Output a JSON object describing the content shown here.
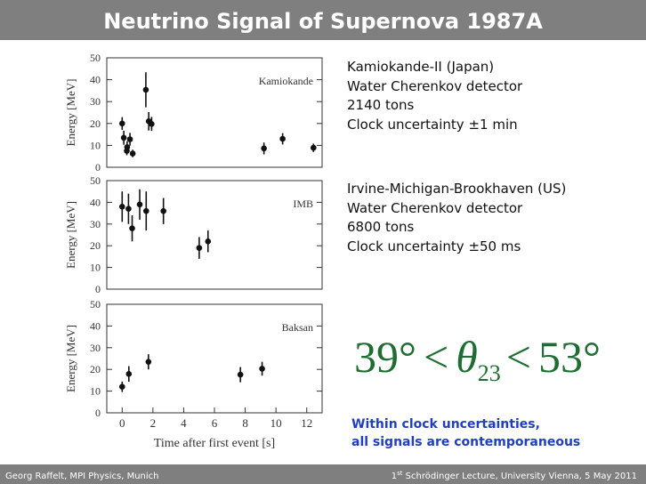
{
  "header": {
    "title": "Neutrino Signal of Supernova 1987A"
  },
  "chart_data": [
    {
      "type": "scatter",
      "title": "Kamiokande",
      "y_label": "Energy [MeV]",
      "color": "#111111",
      "x": [
        0,
        0.107,
        0.303,
        0.324,
        0.507,
        0.686,
        1.541,
        1.728,
        1.915,
        9.219,
        10.433,
        12.439
      ],
      "values": [
        20,
        13.5,
        7.5,
        9.2,
        12.8,
        6.3,
        35.4,
        21,
        19.8,
        8.6,
        13,
        8.9
      ],
      "errors": [
        2.9,
        3.2,
        2.0,
        2.7,
        2.9,
        1.7,
        8.0,
        4.2,
        3.2,
        2.7,
        2.6,
        1.9
      ],
      "xlim": [
        -1,
        13
      ],
      "ylim": [
        0,
        50
      ],
      "yticks": [
        0,
        10,
        20,
        30,
        40,
        50
      ]
    },
    {
      "type": "scatter",
      "title": "IMB",
      "y_label": "Energy [MeV]",
      "color": "#111111",
      "x": [
        0,
        0.412,
        0.65,
        1.141,
        1.562,
        2.684,
        5.01,
        5.582
      ],
      "values": [
        38,
        37,
        28,
        39,
        36,
        36,
        19,
        22
      ],
      "errors": [
        7,
        7,
        6,
        7,
        9,
        6,
        5,
        5
      ],
      "xlim": [
        -1,
        13
      ],
      "ylim": [
        0,
        50
      ],
      "yticks": [
        0,
        10,
        20,
        30,
        40,
        50
      ]
    },
    {
      "type": "scatter",
      "title": "Baksan",
      "y_label": "Energy [MeV]",
      "x_label": "Time after first event [s]",
      "color": "#111111",
      "x": [
        0,
        0.435,
        1.71,
        7.687,
        9.099
      ],
      "values": [
        12,
        17.9,
        23.5,
        17.6,
        20.3
      ],
      "errors": [
        2.4,
        3.6,
        3.5,
        3.5,
        3.2
      ],
      "xlim": [
        -1,
        13
      ],
      "ylim": [
        0,
        50
      ],
      "yticks": [
        0,
        10,
        20,
        30,
        40,
        50
      ],
      "xticks": [
        0,
        2,
        4,
        6,
        8,
        10,
        12
      ]
    }
  ],
  "detectors": [
    {
      "lines": [
        "Kamiokande-II (Japan)",
        "Water Cherenkov detector",
        "2140 tons",
        "Clock uncertainty  ±1 min"
      ]
    },
    {
      "lines": [
        "Irvine-Michigan-Brookhaven (US)",
        "Water Cherenkov detector",
        "6800 tons",
        "Clock uncertainty  ±50 ms"
      ]
    }
  ],
  "formula": {
    "left": "39°",
    "relation": "<",
    "symbol": "θ",
    "subscript": "23",
    "right": "53°"
  },
  "conclusion": [
    "Within clock uncertainties,",
    "all signals are contemporaneous"
  ],
  "footer": {
    "left": "Georg Raffelt, MPI Physics, Munich",
    "right_number": "1",
    "right_sup": "st",
    "right_rest": " Schrödinger Lecture, University Vienna, 5 May 2011"
  }
}
